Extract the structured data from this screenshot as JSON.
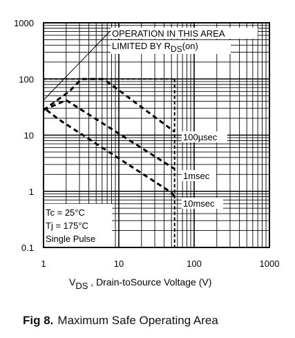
{
  "caption": {
    "label": "Fig 8.",
    "text": "Maximum Safe Operating Area"
  },
  "chart_data": {
    "type": "line",
    "scale": "log-log",
    "xlim": [
      1,
      1000
    ],
    "ylim": [
      0.1,
      1000
    ],
    "x_ticks": [
      "1",
      "10",
      "100",
      "1000"
    ],
    "y_ticks": [
      "0.1",
      "1",
      "10",
      "100",
      "1000"
    ],
    "xlabel": {
      "main": "V",
      "sub": "DS",
      "rest": " , Drain-toSource Voltage (V)"
    },
    "ylabel": "",
    "grid": true,
    "limit_note": {
      "line1": "OPERATION IN THIS AREA",
      "line2_main": "LIMITED BY R",
      "line2_sub": "DS",
      "line2_rest": "(on)"
    },
    "conditions": [
      "Tc = 25°C",
      "Tj = 175°C",
      "Single Pulse"
    ],
    "series": [
      {
        "name": "100µsec",
        "points": [
          [
            1,
            28
          ],
          [
            2.2,
            60
          ],
          [
            3.2,
            100
          ],
          [
            6.3,
            100
          ],
          [
            55,
            11.5
          ]
        ]
      },
      {
        "name": "1msec",
        "points": [
          [
            1,
            28
          ],
          [
            2,
            42
          ],
          [
            55,
            2.5
          ]
        ]
      },
      {
        "name": "10msec",
        "points": [
          [
            1.1,
            28
          ],
          [
            1.6,
            19
          ],
          [
            50,
            0.95
          ],
          [
            55,
            0.8
          ]
        ]
      }
    ],
    "limit_lines": {
      "current_A": 100,
      "voltage_V": 55,
      "rds_on": [
        [
          1,
          42
        ],
        [
          8.5,
          820
        ]
      ]
    }
  }
}
